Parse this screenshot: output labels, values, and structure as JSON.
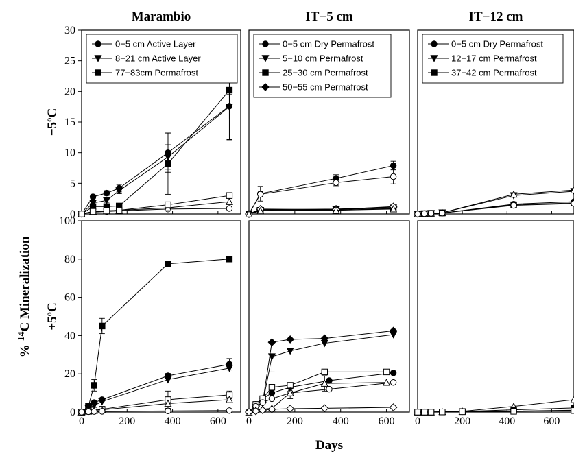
{
  "figure": {
    "ylabel_prefix": "% ",
    "ylabel_sup": "14",
    "ylabel_suffix": "C Mineralization",
    "xlabel": "Days"
  },
  "chart_data": [
    {
      "type": "line",
      "panel": "Marambio, -5ºC",
      "title": "Marambio",
      "row_label": "−5ºC",
      "xlim": [
        0,
        700
      ],
      "ylim": [
        0,
        30
      ],
      "xticks": [],
      "yticks": [
        "0",
        "5",
        "10",
        "15",
        "20",
        "25",
        "30"
      ],
      "yticks_v": [
        0,
        5,
        10,
        15,
        20,
        25,
        30
      ],
      "legend": [
        "0−5 cm Active Layer",
        "8−21 cm Active Layer",
        "77−83cm Permafrost"
      ],
      "series": [
        {
          "name": "0−5 cm Active Layer",
          "marker": "circle",
          "fill": "filled",
          "x": [
            0,
            50,
            110,
            165,
            380,
            650
          ],
          "y": [
            0,
            2.8,
            3.4,
            4.2,
            10.0,
            17.6
          ],
          "err": [
            0,
            0.3,
            0.4,
            0.6,
            3.2,
            5.5
          ]
        },
        {
          "name": "8−21 cm Active Layer",
          "marker": "tri-down",
          "fill": "filled",
          "x": [
            0,
            50,
            110,
            165,
            380,
            650
          ],
          "y": [
            0,
            1.8,
            2.2,
            3.8,
            9.3,
            17.5
          ],
          "err": [
            0,
            0.3,
            0.3,
            0.5,
            2,
            2
          ]
        },
        {
          "name": "77−83cm Permafrost",
          "marker": "square",
          "fill": "filled",
          "x": [
            0,
            50,
            110,
            165,
            380,
            650
          ],
          "y": [
            0,
            1.2,
            1.2,
            1.3,
            8.2,
            20.2
          ],
          "err": [
            0,
            0.2,
            0.2,
            0.2,
            5,
            8
          ]
        },
        {
          "marker": "circle",
          "fill": "open",
          "x": [
            0,
            50,
            110,
            165,
            380,
            650
          ],
          "y": [
            0,
            0.3,
            0.4,
            0.5,
            0.8,
            0.9
          ],
          "err": []
        },
        {
          "marker": "triangle",
          "fill": "open",
          "x": [
            0,
            50,
            110,
            165,
            380,
            650
          ],
          "y": [
            0,
            0.4,
            0.5,
            0.6,
            1.0,
            2.0
          ],
          "err": []
        },
        {
          "marker": "square",
          "fill": "open",
          "x": [
            0,
            50,
            110,
            165,
            380,
            650
          ],
          "y": [
            0,
            0.4,
            0.5,
            0.6,
            1.5,
            3.0
          ],
          "err": []
        }
      ]
    },
    {
      "type": "line",
      "panel": "IT-5 cm, -5ºC",
      "title": "IT−5 cm",
      "xlim": [
        0,
        700
      ],
      "ylim": [
        0,
        30
      ],
      "xticks": [],
      "yticks": [],
      "yticks_v": [],
      "legend": [
        "0−5 cm Dry Permafrost",
        "5−10 cm Permafrost",
        "25−30 cm Permafrost",
        "50−55 cm Permafrost"
      ],
      "series": [
        {
          "name": "0−5 cm Dry Permafrost",
          "marker": "circle",
          "fill": "filled",
          "x": [
            0,
            50,
            380,
            630
          ],
          "y": [
            0,
            3.3,
            5.8,
            7.9
          ],
          "err": [
            0,
            1.2,
            0.6,
            0.7
          ]
        },
        {
          "name": "5−10 cm Permafrost",
          "marker": "tri-down",
          "fill": "filled",
          "x": [
            0,
            50,
            380,
            630
          ],
          "y": [
            0,
            0.6,
            0.7,
            1.0
          ],
          "err": []
        },
        {
          "name": "25−30 cm Permafrost",
          "marker": "square",
          "fill": "filled",
          "x": [
            0,
            50,
            380,
            630
          ],
          "y": [
            0,
            0.5,
            0.6,
            0.9
          ],
          "err": []
        },
        {
          "name": "50−55 cm Permafrost",
          "marker": "diamond",
          "fill": "filled",
          "x": [
            0,
            50,
            380,
            630
          ],
          "y": [
            0,
            0.7,
            0.8,
            1.1
          ],
          "err": []
        },
        {
          "marker": "circle",
          "fill": "open",
          "x": [
            0,
            50,
            380,
            630
          ],
          "y": [
            0,
            3.2,
            5.1,
            6.1
          ],
          "err": [
            0,
            0,
            0.5,
            1.2
          ]
        },
        {
          "marker": "diamond",
          "fill": "open",
          "x": [
            0,
            50,
            380,
            630
          ],
          "y": [
            0,
            0.8,
            0.7,
            1.2
          ],
          "err": []
        },
        {
          "marker": "triangle",
          "fill": "open",
          "x": [
            0,
            50,
            380,
            630
          ],
          "y": [
            0,
            0.5,
            0.6,
            0.8
          ],
          "err": []
        }
      ]
    },
    {
      "type": "line",
      "panel": "IT-12 cm, -5ºC",
      "title": "IT−12 cm",
      "xlim": [
        0,
        700
      ],
      "ylim": [
        0,
        30
      ],
      "xticks": [],
      "yticks": [],
      "yticks_v": [],
      "legend": [
        "0−5 cm Dry Permafrost",
        "12−17 cm Permafrost",
        "37−42 cm Permafrost"
      ],
      "series": [
        {
          "name": "0−5 cm Dry Permafrost",
          "marker": "circle",
          "fill": "filled",
          "x": [
            0,
            30,
            60,
            110,
            430,
            700
          ],
          "y": [
            0,
            0.05,
            0.1,
            0.15,
            1.6,
            2.0
          ],
          "err": []
        },
        {
          "name": "12−17 cm Permafrost",
          "marker": "tri-down",
          "fill": "filled",
          "x": [
            0,
            30,
            60,
            110,
            430,
            700
          ],
          "y": [
            0,
            0.05,
            0.1,
            0.2,
            3.0,
            3.7
          ],
          "err": []
        },
        {
          "name": "37−42 cm Permafrost",
          "marker": "square",
          "fill": "filled",
          "x": [
            0,
            30,
            60,
            110,
            430,
            700
          ],
          "y": [
            0,
            0.05,
            0.1,
            0.15,
            1.5,
            1.8
          ],
          "err": []
        },
        {
          "marker": "triangle",
          "fill": "open",
          "x": [
            0,
            30,
            60,
            110,
            430,
            700
          ],
          "y": [
            0,
            0.05,
            0.1,
            0.2,
            3.2,
            3.9
          ],
          "err": []
        },
        {
          "marker": "circle",
          "fill": "open",
          "x": [
            0,
            30,
            60,
            110,
            430,
            700
          ],
          "y": [
            0,
            0.05,
            0.1,
            0.15,
            1.4,
            1.7
          ],
          "err": []
        }
      ]
    },
    {
      "type": "line",
      "panel": "Marambio, +5ºC",
      "row_label": "+5ºC",
      "xlim": [
        0,
        700
      ],
      "ylim": [
        0,
        100
      ],
      "xticks": [
        "0",
        "200",
        "400",
        "600"
      ],
      "xticks_v": [
        0,
        200,
        400,
        600
      ],
      "yticks": [
        "0",
        "20",
        "40",
        "60",
        "80",
        "100"
      ],
      "yticks_v": [
        0,
        20,
        40,
        60,
        80,
        100
      ],
      "series": [
        {
          "marker": "circle",
          "fill": "filled",
          "x": [
            0,
            30,
            55,
            90,
            380,
            650
          ],
          "y": [
            0,
            3,
            5,
            6.5,
            19,
            25
          ],
          "err": [
            0,
            0,
            0,
            0.6,
            1.2,
            3
          ]
        },
        {
          "marker": "tri-down",
          "fill": "filled",
          "x": [
            0,
            30,
            55,
            90,
            380,
            650
          ],
          "y": [
            0,
            2,
            3.5,
            5.5,
            17,
            23
          ],
          "err": []
        },
        {
          "marker": "square",
          "fill": "filled",
          "x": [
            0,
            30,
            55,
            90,
            380,
            650
          ],
          "y": [
            0,
            3,
            14,
            45,
            77.5,
            80
          ],
          "err": [
            0,
            0,
            3,
            4,
            0,
            0
          ]
        },
        {
          "marker": "square",
          "fill": "open",
          "x": [
            0,
            30,
            55,
            90,
            380,
            650
          ],
          "y": [
            0,
            0.5,
            1,
            1.5,
            6.5,
            9
          ],
          "err": [
            0,
            0,
            0,
            0,
            4.5,
            2
          ]
        },
        {
          "marker": "triangle",
          "fill": "open",
          "x": [
            0,
            30,
            55,
            90,
            380,
            650
          ],
          "y": [
            0,
            0.4,
            0.8,
            1.2,
            4.5,
            6.5
          ],
          "err": []
        },
        {
          "marker": "circle",
          "fill": "open",
          "x": [
            0,
            30,
            55,
            90,
            380,
            650
          ],
          "y": [
            0,
            0.2,
            0.3,
            0.4,
            0.6,
            0.8
          ],
          "err": []
        }
      ]
    },
    {
      "type": "line",
      "panel": "IT-5 cm, +5ºC",
      "xlim": [
        0,
        700
      ],
      "ylim": [
        0,
        100
      ],
      "xticks": [
        "0",
        "200",
        "400",
        "600"
      ],
      "xticks_v": [
        0,
        200,
        400,
        600
      ],
      "yticks": [],
      "yticks_v": [],
      "series": [
        {
          "marker": "diamond",
          "fill": "filled",
          "x": [
            0,
            30,
            60,
            100,
            180,
            330,
            630
          ],
          "y": [
            0,
            3,
            5,
            36.5,
            38,
            38.5,
            42.5
          ],
          "err": []
        },
        {
          "marker": "tri-down",
          "fill": "filled",
          "x": [
            0,
            30,
            60,
            100,
            180,
            330,
            630
          ],
          "y": [
            0,
            2.5,
            4.5,
            29,
            32,
            36,
            40.5
          ],
          "err": [
            0,
            0,
            0,
            8,
            0,
            0,
            0
          ]
        },
        {
          "marker": "circle",
          "fill": "filled",
          "x": [
            0,
            30,
            60,
            100,
            180,
            350,
            630
          ],
          "y": [
            0,
            4,
            7,
            10,
            13,
            16.5,
            20.5
          ],
          "err": []
        },
        {
          "marker": "square",
          "fill": "open",
          "x": [
            0,
            30,
            60,
            100,
            180,
            330,
            600
          ],
          "y": [
            0,
            4,
            7,
            13,
            14,
            21,
            21
          ],
          "err": []
        },
        {
          "marker": "circle",
          "fill": "open",
          "x": [
            0,
            30,
            60,
            100,
            180,
            350,
            630
          ],
          "y": [
            0,
            3,
            5,
            7,
            10,
            12,
            15.5
          ],
          "err": []
        },
        {
          "marker": "triangle",
          "fill": "open",
          "x": [
            0,
            30,
            60,
            100,
            180,
            330,
            600
          ],
          "y": [
            0,
            1,
            1.5,
            2,
            10,
            15,
            15.5
          ],
          "err": [
            0,
            0,
            0,
            0,
            3,
            4,
            0
          ]
        },
        {
          "marker": "diamond",
          "fill": "open",
          "x": [
            0,
            30,
            60,
            100,
            180,
            330,
            630
          ],
          "y": [
            0,
            0.5,
            1,
            1.5,
            1.8,
            2,
            2.5
          ],
          "err": []
        }
      ]
    },
    {
      "type": "line",
      "panel": "IT-12 cm, +5ºC",
      "xlim": [
        0,
        700
      ],
      "ylim": [
        0,
        100
      ],
      "xticks": [
        "0",
        "200",
        "400",
        "600"
      ],
      "xticks_v": [
        0,
        200,
        400,
        600
      ],
      "yticks": [],
      "yticks_v": [],
      "series": [
        {
          "marker": "triangle",
          "fill": "open",
          "x": [
            0,
            30,
            60,
            110,
            200,
            430,
            700
          ],
          "y": [
            0,
            0,
            0,
            0.2,
            0.4,
            3,
            6.5
          ],
          "err": []
        },
        {
          "marker": "square",
          "fill": "filled",
          "x": [
            0,
            30,
            60,
            110,
            200,
            430,
            700
          ],
          "y": [
            0,
            0,
            0,
            0.1,
            0.3,
            1.2,
            2.2
          ],
          "err": []
        },
        {
          "marker": "circle",
          "fill": "open",
          "x": [
            0,
            30,
            60,
            110,
            200,
            430,
            700
          ],
          "y": [
            0,
            0,
            0,
            0.1,
            0.2,
            0.5,
            1
          ],
          "err": []
        },
        {
          "marker": "square",
          "fill": "open",
          "x": [
            0,
            30,
            60,
            110,
            200,
            430,
            700
          ],
          "y": [
            0,
            0,
            0,
            0.1,
            0.2,
            0.4,
            0.8
          ],
          "err": []
        }
      ]
    }
  ]
}
